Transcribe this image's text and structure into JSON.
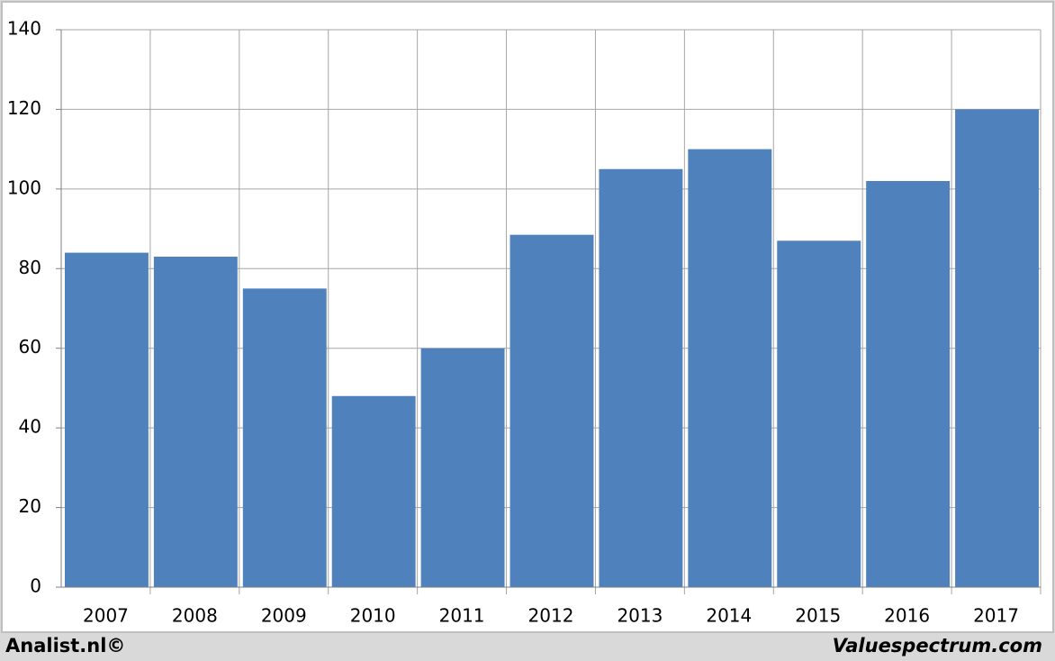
{
  "chart_data": {
    "type": "bar",
    "categories": [
      "2007",
      "2008",
      "2009",
      "2010",
      "2011",
      "2012",
      "2013",
      "2014",
      "2015",
      "2016",
      "2017"
    ],
    "values": [
      84,
      83,
      75,
      48,
      60,
      88.5,
      105,
      110,
      87,
      102,
      120
    ],
    "color": "#4f81bd",
    "ylim": [
      0,
      140
    ],
    "yticks": [
      0,
      20,
      40,
      60,
      80,
      100,
      120,
      140
    ],
    "grid": true,
    "credits": [
      "Analist.nl©",
      "Valuespectrum.com"
    ]
  }
}
